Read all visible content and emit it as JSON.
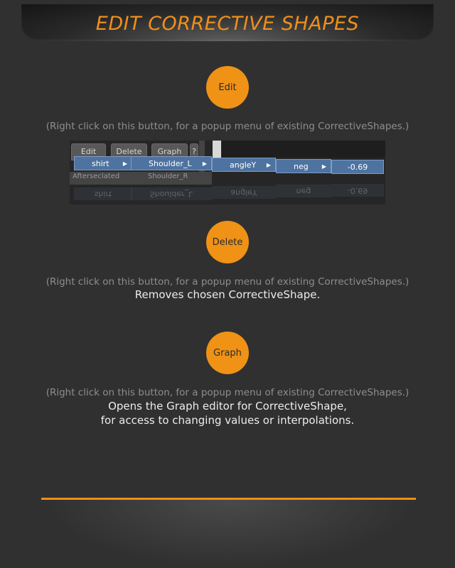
{
  "header": {
    "title": "EDIT CORRECTIVE SHAPES"
  },
  "sections": [
    {
      "button": "Edit",
      "hint": "(Right click on this button, for a popup menu of existing CorrectiveShapes.)"
    },
    {
      "button": "Delete",
      "hint": "(Right click on this button, for a popup menu of existing CorrectiveShapes.)",
      "desc": "Removes chosen CorrectiveShape."
    },
    {
      "button": "Graph",
      "hint": "(Right click on this button, for a popup menu of existing CorrectiveShapes.)",
      "desc_line1": "Opens the Graph editor for CorrectiveShape,",
      "desc_line2": "for access to changing values or interpolations."
    }
  ],
  "screenshot": {
    "tools": [
      "Edit",
      "Delete",
      "Graph",
      "?"
    ],
    "menu": {
      "shape": "shirt",
      "corrective": "Shoulder_L",
      "corrective_partial": "Shoulder_R",
      "attribute": "angleY",
      "side": "neg",
      "value": "-0.69",
      "left_partial": "Afterseclated"
    },
    "reflection": {
      "shape": "shirt",
      "corrective": "Shoulder_L",
      "attribute": "angleY",
      "side": "neg",
      "value": "-0.69"
    }
  },
  "colors": {
    "accent": "#ef9216",
    "background": "#303030",
    "menu_highlight": "#4f73a0"
  }
}
